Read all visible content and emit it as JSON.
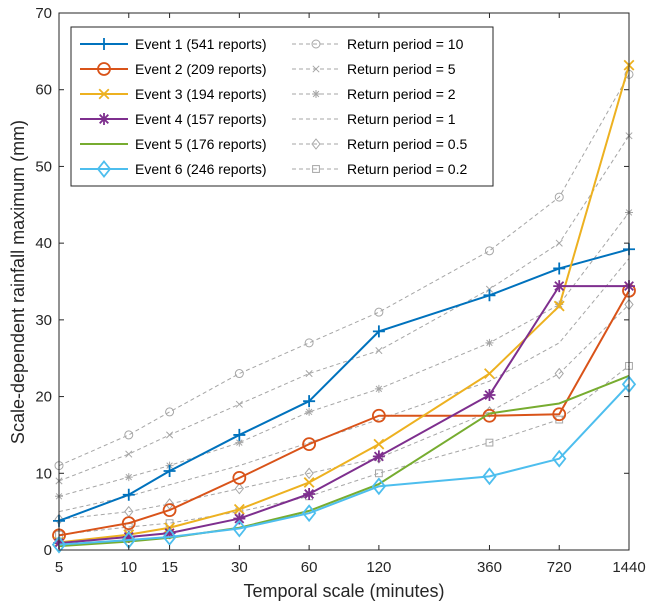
{
  "chart_data": {
    "type": "line",
    "xlabel": "Temporal scale (minutes)",
    "ylabel": "Scale-dependent rainfall maximum (mm)",
    "x_scale": "log",
    "xlim": [
      5,
      1440
    ],
    "ylim": [
      0,
      70
    ],
    "x_ticks": [
      5,
      10,
      15,
      30,
      60,
      120,
      360,
      720,
      1440
    ],
    "y_ticks": [
      0,
      10,
      20,
      30,
      40,
      50,
      60,
      70
    ],
    "x": [
      5,
      10,
      15,
      30,
      60,
      120,
      360,
      720,
      1440
    ],
    "grid": false,
    "legend_position": "top-left",
    "series": [
      {
        "name": "Event 1 (541 reports)",
        "color": "#0072BD",
        "marker": "plus",
        "values": [
          3.8,
          7.2,
          10.3,
          15.0,
          19.4,
          28.5,
          33.2,
          36.7,
          39.2
        ]
      },
      {
        "name": "Event 2 (209 reports)",
        "color": "#D95319",
        "marker": "circle",
        "values": [
          1.9,
          3.5,
          5.2,
          9.4,
          13.8,
          17.5,
          17.5,
          17.7,
          33.8
        ]
      },
      {
        "name": "Event 3 (194 reports)",
        "color": "#EDB120",
        "marker": "x",
        "values": [
          1.0,
          2.0,
          2.9,
          5.3,
          8.8,
          13.8,
          23.0,
          31.8,
          63.2
        ]
      },
      {
        "name": "Event 4 (157 reports)",
        "color": "#7E2F8E",
        "marker": "asterisk",
        "values": [
          0.9,
          1.7,
          2.2,
          4.1,
          7.3,
          12.2,
          20.2,
          34.4,
          34.4
        ]
      },
      {
        "name": "Event 5 (176 reports)",
        "color": "#77AC30",
        "marker": "none",
        "values": [
          0.5,
          1.1,
          1.6,
          2.9,
          5.1,
          8.6,
          17.8,
          19.1,
          22.7
        ]
      },
      {
        "name": "Event 6 (246 reports)",
        "color": "#4DBEEE",
        "marker": "diamond",
        "values": [
          0.7,
          1.3,
          1.7,
          2.8,
          4.8,
          8.3,
          9.6,
          11.9,
          21.6
        ]
      },
      {
        "name": "Return period = 10",
        "color": "#a6a6a6",
        "dashed": true,
        "marker": "circle",
        "values": [
          11.0,
          15.0,
          18.0,
          23.0,
          27.0,
          31.0,
          39.0,
          46.0,
          62.0
        ]
      },
      {
        "name": "Return period = 5",
        "color": "#a6a6a6",
        "dashed": true,
        "marker": "x",
        "values": [
          9.0,
          12.5,
          15.0,
          19.0,
          23.0,
          26.0,
          34.0,
          40.0,
          54.0
        ]
      },
      {
        "name": "Return period = 2",
        "color": "#a6a6a6",
        "dashed": true,
        "marker": "asterisk",
        "values": [
          7.0,
          9.5,
          11.0,
          14.0,
          18.0,
          21.0,
          27.0,
          32.0,
          44.0
        ]
      },
      {
        "name": "Return period = 1",
        "color": "#a6a6a6",
        "dashed": true,
        "marker": "none",
        "values": [
          5.0,
          7.0,
          8.5,
          11.0,
          14.0,
          17.0,
          22.0,
          27.0,
          38.0
        ]
      },
      {
        "name": "Return period = 0.5",
        "color": "#a6a6a6",
        "dashed": true,
        "marker": "diamond",
        "values": [
          4.0,
          5.0,
          6.0,
          8.0,
          10.0,
          12.0,
          18.0,
          23.0,
          32.0
        ]
      },
      {
        "name": "Return period = 0.2",
        "color": "#a6a6a6",
        "dashed": true,
        "marker": "square",
        "values": [
          2.0,
          3.0,
          3.5,
          5.0,
          7.0,
          10.0,
          14.0,
          17.0,
          24.0
        ]
      }
    ]
  }
}
